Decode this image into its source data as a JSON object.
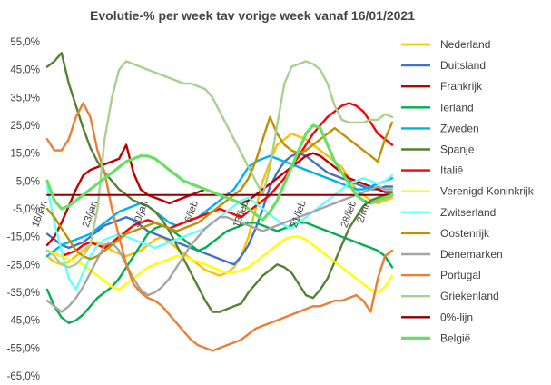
{
  "chart_data": {
    "type": "line",
    "title": "Evolutie-% per week tav vorige week vanaf 16/01/2021",
    "xlabel": "",
    "ylabel": "",
    "ylim": [
      -65,
      55
    ],
    "yticks": [
      "55,0%",
      "45,0%",
      "35,0%",
      "25,0%",
      "15,0%",
      "5,0%",
      "-5,0%",
      "-15,0%",
      "-25,0%",
      "-35,0%",
      "-45,0%",
      "-55,0%",
      "-65,0%"
    ],
    "ytick_values": [
      55,
      45,
      35,
      25,
      15,
      5,
      -5,
      -15,
      -25,
      -35,
      -45,
      -55,
      -65
    ],
    "x_range": [
      0,
      48
    ],
    "xticks": [
      {
        "label": "16/jan",
        "x": 0
      },
      {
        "label": "23/jan",
        "x": 7
      },
      {
        "label": "30/jan",
        "x": 14
      },
      {
        "label": "6/feb",
        "x": 21
      },
      {
        "label": "13/feb",
        "x": 28
      },
      {
        "label": "21/feb",
        "x": 36
      },
      {
        "label": "28/feb",
        "x": 43
      },
      {
        "label": "2/mrt",
        "x": 45
      }
    ],
    "grid": false,
    "legend_position": "right",
    "series": [
      {
        "name": "Nederland",
        "color": "#FFC000",
        "values": [
          -22,
          -24,
          -25,
          -24,
          -22,
          -20,
          -18,
          -17,
          -18,
          -20,
          -21,
          -22,
          -21,
          -20,
          -18,
          -16,
          -15,
          -17,
          -19,
          -21,
          -23,
          -25,
          -27,
          -28,
          -29,
          -28,
          -26,
          -22,
          -15,
          -5,
          5,
          12,
          18,
          20,
          22,
          21,
          20,
          18,
          16,
          14,
          12,
          10,
          6,
          2,
          0,
          -2,
          -3,
          -2,
          -1
        ]
      },
      {
        "name": "Duitsland",
        "color": "#4472C4",
        "values": [
          -14,
          -16,
          -18,
          -19,
          -18,
          -17,
          -15,
          -13,
          -11,
          -10,
          -9,
          -8,
          -9,
          -11,
          -13,
          -14,
          -15,
          -16,
          -17,
          -18,
          -19,
          -20,
          -21,
          -22,
          -23,
          -24,
          -25,
          -22,
          -18,
          -12,
          -5,
          3,
          8,
          12,
          14,
          15,
          14,
          12,
          10,
          8,
          7,
          6,
          5,
          4,
          3,
          2,
          2,
          3,
          3
        ]
      },
      {
        "name": "Frankrijk",
        "color": "#C00000",
        "values": [
          -18,
          -15,
          -10,
          -4,
          2,
          7,
          9,
          10,
          11,
          12,
          13,
          18,
          8,
          2,
          0,
          -1,
          -2,
          -3,
          -2,
          -1,
          0,
          1,
          2,
          1,
          0,
          -1,
          -2,
          -3,
          -2,
          0,
          2,
          4,
          6,
          8,
          10,
          12,
          14,
          15,
          14,
          12,
          10,
          8,
          6,
          5,
          4,
          3,
          2,
          1,
          1
        ]
      },
      {
        "name": "Ierland",
        "color": "#00B050",
        "values": [
          -34,
          -40,
          -44,
          -46,
          -45,
          -43,
          -40,
          -37,
          -35,
          -33,
          -30,
          -26,
          -22,
          -18,
          -14,
          -12,
          -11,
          -12,
          -14,
          -16,
          -18,
          -20,
          -19,
          -17,
          -15,
          -13,
          -12,
          -11,
          -10,
          -10,
          -11,
          -12,
          -13,
          -12,
          -11,
          -10,
          -10,
          -11,
          -12,
          -13,
          -14,
          -15,
          -16,
          -17,
          -18,
          -19,
          -20,
          -22,
          -26
        ]
      },
      {
        "name": "Zweden",
        "color": "#00B0F0",
        "values": [
          -22,
          -20,
          -18,
          -17,
          -16,
          -15,
          -14,
          -12,
          -10,
          -8,
          -6,
          -5,
          -4,
          -3,
          -4,
          -6,
          -8,
          -10,
          -11,
          -10,
          -9,
          -8,
          -6,
          -4,
          -2,
          0,
          2,
          6,
          10,
          12,
          13,
          14,
          13,
          12,
          11,
          10,
          9,
          8,
          7,
          6,
          5,
          4,
          3,
          2,
          2,
          3,
          4,
          5,
          6
        ]
      },
      {
        "name": "Spanje",
        "color": "#548235",
        "values": [
          46,
          48,
          51,
          40,
          32,
          24,
          17,
          12,
          8,
          5,
          2,
          0,
          -2,
          -3,
          -4,
          -6,
          -9,
          -13,
          -18,
          -23,
          -28,
          -33,
          -38,
          -42,
          -42,
          -41,
          -40,
          -39,
          -35,
          -32,
          -29,
          -27,
          -25,
          -26,
          -28,
          -32,
          -36,
          -37,
          -34,
          -30,
          -24,
          -18,
          -12,
          -8,
          -4,
          -2,
          -1,
          0,
          1
        ]
      },
      {
        "name": "Italiê",
        "color": "#FF0000",
        "values": [
          -20,
          -21,
          -22,
          -21,
          -20,
          -18,
          -17,
          -18,
          -19,
          -17,
          -15,
          -13,
          -11,
          -10,
          -9,
          -10,
          -11,
          -12,
          -11,
          -10,
          -9,
          -8,
          -7,
          -6,
          -5,
          -6,
          -7,
          -8,
          -6,
          -4,
          -2,
          0,
          3,
          6,
          10,
          14,
          18,
          22,
          25,
          28,
          30,
          32,
          33,
          32,
          30,
          26,
          22,
          20,
          18
        ]
      },
      {
        "name": "Verenigd Koninkrijk",
        "color": "#FFFF00",
        "values": [
          -20,
          -21,
          -22,
          -23,
          -24,
          -25,
          -27,
          -29,
          -31,
          -33,
          -34,
          -32,
          -30,
          -28,
          -26,
          -25,
          -24,
          -23,
          -22,
          -22,
          -23,
          -24,
          -25,
          -26,
          -27,
          -28,
          -28,
          -27,
          -26,
          -24,
          -22,
          -20,
          -18,
          -16,
          -15,
          -15,
          -16,
          -18,
          -20,
          -22,
          -24,
          -26,
          -28,
          -30,
          -32,
          -34,
          -35,
          -33,
          -29
        ]
      },
      {
        "name": "Zwitserland",
        "color": "#66FFFF",
        "values": [
          3,
          -10,
          -20,
          -30,
          -34,
          -28,
          -22,
          -18,
          -16,
          -15,
          -14,
          -15,
          -16,
          -17,
          -18,
          -19,
          -18,
          -17,
          -16,
          -15,
          -14,
          -13,
          -12,
          -10,
          -8,
          -6,
          -4,
          -2,
          -1,
          -3,
          -5,
          -7,
          -9,
          -11,
          -12,
          -10,
          -8,
          -6,
          -4,
          -2,
          0,
          2,
          4,
          5,
          6,
          5,
          4,
          5,
          7
        ]
      },
      {
        "name": "Oostenrijk",
        "color": "#BF9000",
        "values": [
          -5,
          -8,
          -12,
          -16,
          -20,
          -22,
          -23,
          -22,
          -20,
          -18,
          -16,
          -14,
          -13,
          -12,
          -11,
          -10,
          -11,
          -12,
          -13,
          -12,
          -11,
          -10,
          -8,
          -6,
          -4,
          -2,
          0,
          2,
          6,
          12,
          20,
          28,
          22,
          18,
          16,
          15,
          16,
          18,
          20,
          22,
          24,
          22,
          20,
          18,
          16,
          14,
          12,
          20,
          26
        ]
      },
      {
        "name": "Denemarken",
        "color": "#A5A5A5",
        "values": [
          -38,
          -40,
          -42,
          -40,
          -37,
          -33,
          -28,
          -23,
          -18,
          -17,
          -20,
          -25,
          -30,
          -34,
          -36,
          -35,
          -33,
          -30,
          -26,
          -22,
          -18,
          -15,
          -12,
          -10,
          -8,
          -8,
          -9,
          -10,
          -11,
          -12,
          -13,
          -12,
          -11,
          -10,
          -9,
          -8,
          -7,
          -6,
          -5,
          -4,
          -3,
          -2,
          -1,
          0,
          1,
          2,
          3,
          2,
          2
        ]
      },
      {
        "name": "Portugal",
        "color": "#ED7D31",
        "values": [
          20,
          16,
          16,
          20,
          28,
          33,
          28,
          16,
          8,
          -5,
          -15,
          -25,
          -32,
          -35,
          -37,
          -38,
          -40,
          -43,
          -46,
          -49,
          -52,
          -54,
          -55,
          -56,
          -55,
          -54,
          -53,
          -52,
          -50,
          -48,
          -47,
          -46,
          -45,
          -44,
          -43,
          -42,
          -41,
          -40,
          -40,
          -39,
          -38,
          -38,
          -37,
          -36,
          -38,
          -42,
          -30,
          -22,
          -20
        ]
      },
      {
        "name": "Griekenland",
        "color": "#A9D18E",
        "values": [
          -20,
          -22,
          -25,
          -26,
          -25,
          -22,
          -18,
          -5,
          20,
          35,
          45,
          48,
          47,
          46,
          45,
          44,
          43,
          42,
          41,
          40,
          40,
          39,
          38,
          35,
          30,
          25,
          20,
          15,
          10,
          5,
          0,
          10,
          25,
          40,
          46,
          47,
          48,
          47,
          45,
          40,
          32,
          27,
          26,
          26,
          26,
          27,
          27,
          29,
          28
        ]
      },
      {
        "name": "0%-lijn",
        "color": "#8B0000",
        "values": [
          0,
          0,
          0,
          0,
          0,
          0,
          0,
          0,
          0,
          0,
          0,
          0,
          0,
          0,
          0,
          0,
          0,
          0,
          0,
          0,
          0,
          0,
          0,
          0,
          0,
          0,
          0,
          0,
          0,
          0,
          0,
          0,
          0,
          0,
          0,
          0,
          0,
          0,
          0,
          0,
          0,
          0,
          0,
          0,
          0,
          0,
          0,
          0,
          0
        ]
      },
      {
        "name": "België",
        "color": "#66E066",
        "values": [
          5,
          -2,
          -5,
          -4,
          -2,
          0,
          2,
          4,
          6,
          8,
          10,
          12,
          13,
          14,
          14,
          13,
          11,
          9,
          7,
          5,
          4,
          3,
          2,
          1,
          0,
          -1,
          -2,
          -3,
          -5,
          -7,
          -9,
          -6,
          -2,
          4,
          10,
          16,
          22,
          25,
          24,
          18,
          12,
          8,
          4,
          0,
          -2,
          -3,
          -2,
          -1,
          0
        ]
      }
    ]
  }
}
